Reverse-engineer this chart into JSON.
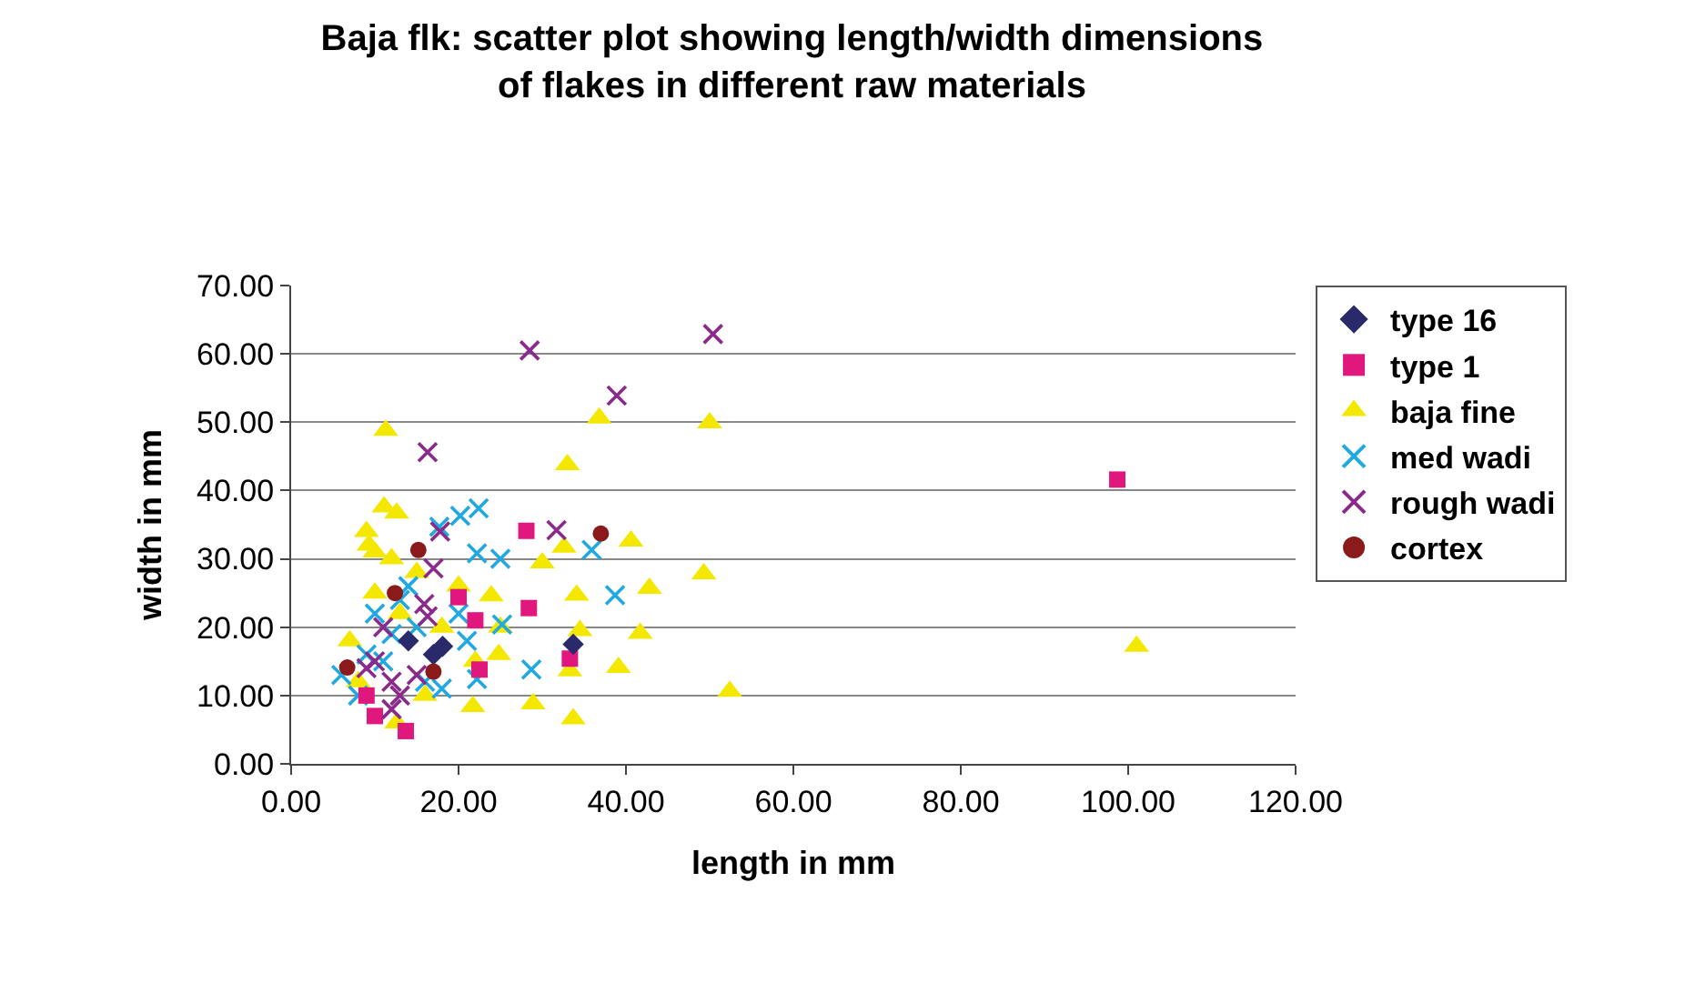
{
  "chart_data": {
    "type": "scatter",
    "title": "Baja flk: scatter plot showing length/width dimensions\nof flakes in different raw materials",
    "xlabel": "length in mm",
    "ylabel": "width in mm",
    "xlim": [
      0,
      120
    ],
    "ylim": [
      0,
      70
    ],
    "xticks": [
      {
        "value": 0,
        "label": "0.00"
      },
      {
        "value": 20,
        "label": "20.00"
      },
      {
        "value": 40,
        "label": "40.00"
      },
      {
        "value": 60,
        "label": "60.00"
      },
      {
        "value": 80,
        "label": "80.00"
      },
      {
        "value": 100,
        "label": "100.00"
      },
      {
        "value": 120,
        "label": "120.00"
      }
    ],
    "yticks": [
      {
        "value": 0,
        "label": "0.00"
      },
      {
        "value": 10,
        "label": "10.00"
      },
      {
        "value": 20,
        "label": "20.00"
      },
      {
        "value": 30,
        "label": "30.00"
      },
      {
        "value": 40,
        "label": "40.00"
      },
      {
        "value": 50,
        "label": "50.00"
      },
      {
        "value": 60,
        "label": "60.00"
      },
      {
        "value": 70,
        "label": "70.00"
      }
    ],
    "grid": "y",
    "legend": "right",
    "series": [
      {
        "name": "baja fine",
        "color": "#f5e800",
        "marker": "triangle",
        "x": [
          11.3,
          36.8,
          50,
          33,
          11.1,
          12.6,
          9.3,
          40.6,
          32.6,
          30,
          49.3,
          42.8,
          34.1,
          23.9,
          41.7,
          34.5,
          39.1,
          52.4,
          28.9,
          33.7,
          33.3,
          24.8,
          21.7,
          12.6,
          101,
          8,
          10,
          13,
          15,
          18,
          20,
          7,
          12,
          16,
          22,
          25,
          9,
          10
        ],
        "values": [
          48.8,
          50.6,
          49.9,
          43.8,
          37.6,
          36.7,
          32,
          32.6,
          31.7,
          29.4,
          27.8,
          25.7,
          24.7,
          24.6,
          19.1,
          19.5,
          14.1,
          10.6,
          8.8,
          6.6,
          13.6,
          16,
          8.4,
          6,
          17.2,
          12,
          25,
          22,
          28,
          20,
          26,
          18,
          30,
          10,
          15,
          20,
          34,
          31
        ]
      },
      {
        "name": "med wadi",
        "color": "#20a8e0",
        "marker": "cross",
        "x": [
          22.4,
          20.2,
          17.7,
          35.9,
          25,
          22.2,
          38.7,
          25.2,
          22.2,
          28.7,
          6,
          8,
          10,
          12,
          14,
          11,
          16,
          18,
          21,
          9,
          13,
          15,
          20
        ],
        "values": [
          37.4,
          36.3,
          34.7,
          31.3,
          30,
          30.8,
          24.7,
          20.4,
          12.4,
          13.8,
          13,
          10,
          22,
          19,
          26,
          15,
          12,
          11,
          18,
          16,
          24,
          20,
          22
        ]
      },
      {
        "name": "type 1",
        "color": "#e0187e",
        "marker": "square",
        "x": [
          28.1,
          28.4,
          20,
          22,
          33.3,
          22.5,
          13.7,
          10,
          98.7,
          9
        ],
        "values": [
          34.1,
          22.8,
          24.4,
          21,
          15.4,
          13.8,
          4.8,
          7,
          41.6,
          10
        ]
      },
      {
        "name": "rough wadi",
        "color": "#8a2a8a",
        "marker": "cross",
        "x": [
          28.5,
          50.4,
          38.9,
          16.3,
          17.8,
          31.7,
          17,
          15.9,
          16.3,
          10,
          12,
          13,
          9,
          11,
          15,
          12
        ],
        "values": [
          60.5,
          62.9,
          53.9,
          45.6,
          34,
          34.2,
          28.6,
          23.4,
          21.6,
          15,
          12,
          10,
          14,
          20,
          13,
          8
        ]
      },
      {
        "name": "type 16",
        "color": "#2a2a6a",
        "marker": "diamond",
        "x": [
          33.7,
          18.1,
          17,
          14
        ],
        "values": [
          17.5,
          17.2,
          16,
          18
        ]
      },
      {
        "name": "cortex",
        "color": "#8b1a1a",
        "marker": "circle",
        "x": [
          37,
          15.2,
          12.4,
          6.7,
          17
        ],
        "values": [
          33.7,
          31.3,
          25,
          14.1,
          13.5
        ]
      }
    ]
  }
}
